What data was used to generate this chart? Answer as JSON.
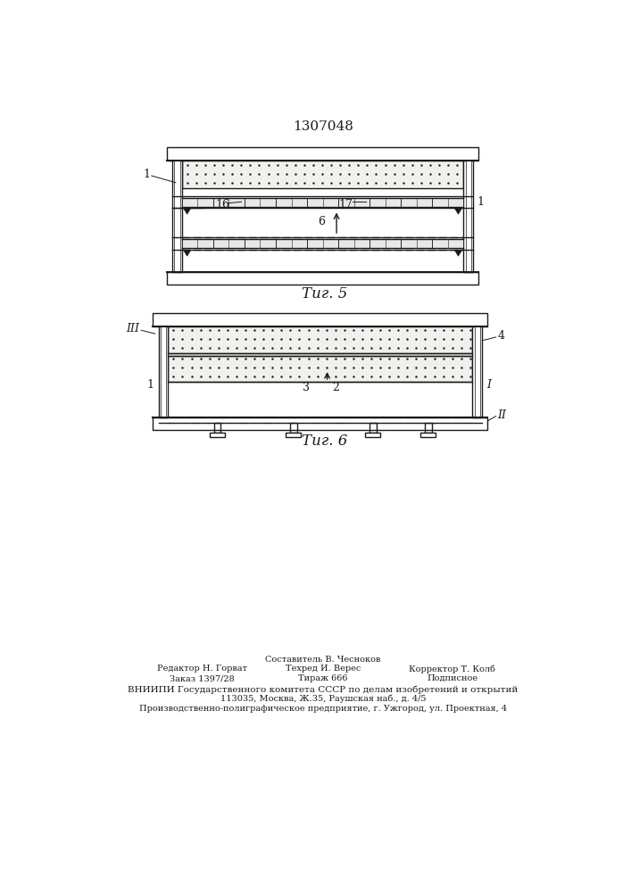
{
  "patent_number": "1307048",
  "fig5_caption": "Τиг. 5",
  "fig6_caption": "Τиг. 6",
  "footer_col1_line1": "Редактор Н. Горват",
  "footer_col1_line2": "Заказ 1397/28",
  "footer_col2_line0": "Составитель В. Чесноков",
  "footer_col2_line1": "Техред И. Верес",
  "footer_col2_line2": "Тираж 666",
  "footer_col3_line1": "Корректор Т. Колб",
  "footer_col3_line2": "Подписное",
  "footer_vniipni": "ВНИИПИ Государственного комитета СССР по делам изобретений и открытий",
  "footer_addr": "113035, Москва, Ж․35, Раушская наб., д. 4/5",
  "footer_prod": "Производственно-полиграфическое предприятие, г. Ужгород, ул. Проектная, 4",
  "bg_color": "#ffffff",
  "line_color": "#1a1a1a"
}
